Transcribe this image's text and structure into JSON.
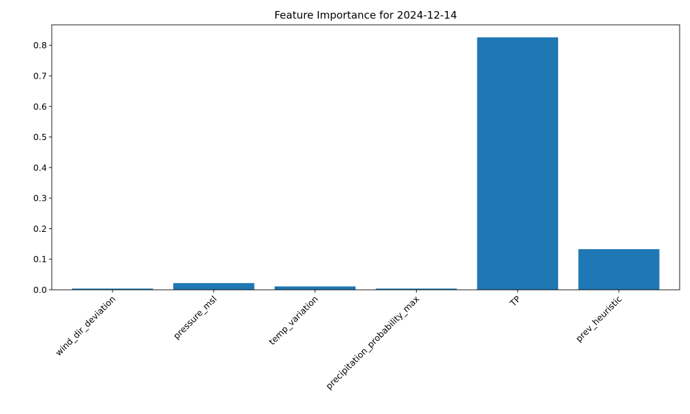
{
  "chart_data": {
    "type": "bar",
    "title": "Feature Importance for 2024-12-14",
    "xlabel": "",
    "ylabel": "",
    "categories": [
      "wind_dir_deviation",
      "pressure_msl",
      "temp_variation",
      "precipitation_probability_max",
      "TP",
      "prev_heuristic"
    ],
    "values": [
      0.004,
      0.022,
      0.011,
      0.004,
      0.826,
      0.133
    ],
    "ylim": [
      0,
      0.867
    ],
    "yticks": [
      0.0,
      0.1,
      0.2,
      0.3,
      0.4,
      0.5,
      0.6,
      0.7,
      0.8
    ],
    "ytick_labels": [
      "0.0",
      "0.1",
      "0.2",
      "0.3",
      "0.4",
      "0.5",
      "0.6",
      "0.7",
      "0.8"
    ],
    "xtick_rotation_deg": 45,
    "grid": false,
    "bar_color": "#1f77b4"
  }
}
